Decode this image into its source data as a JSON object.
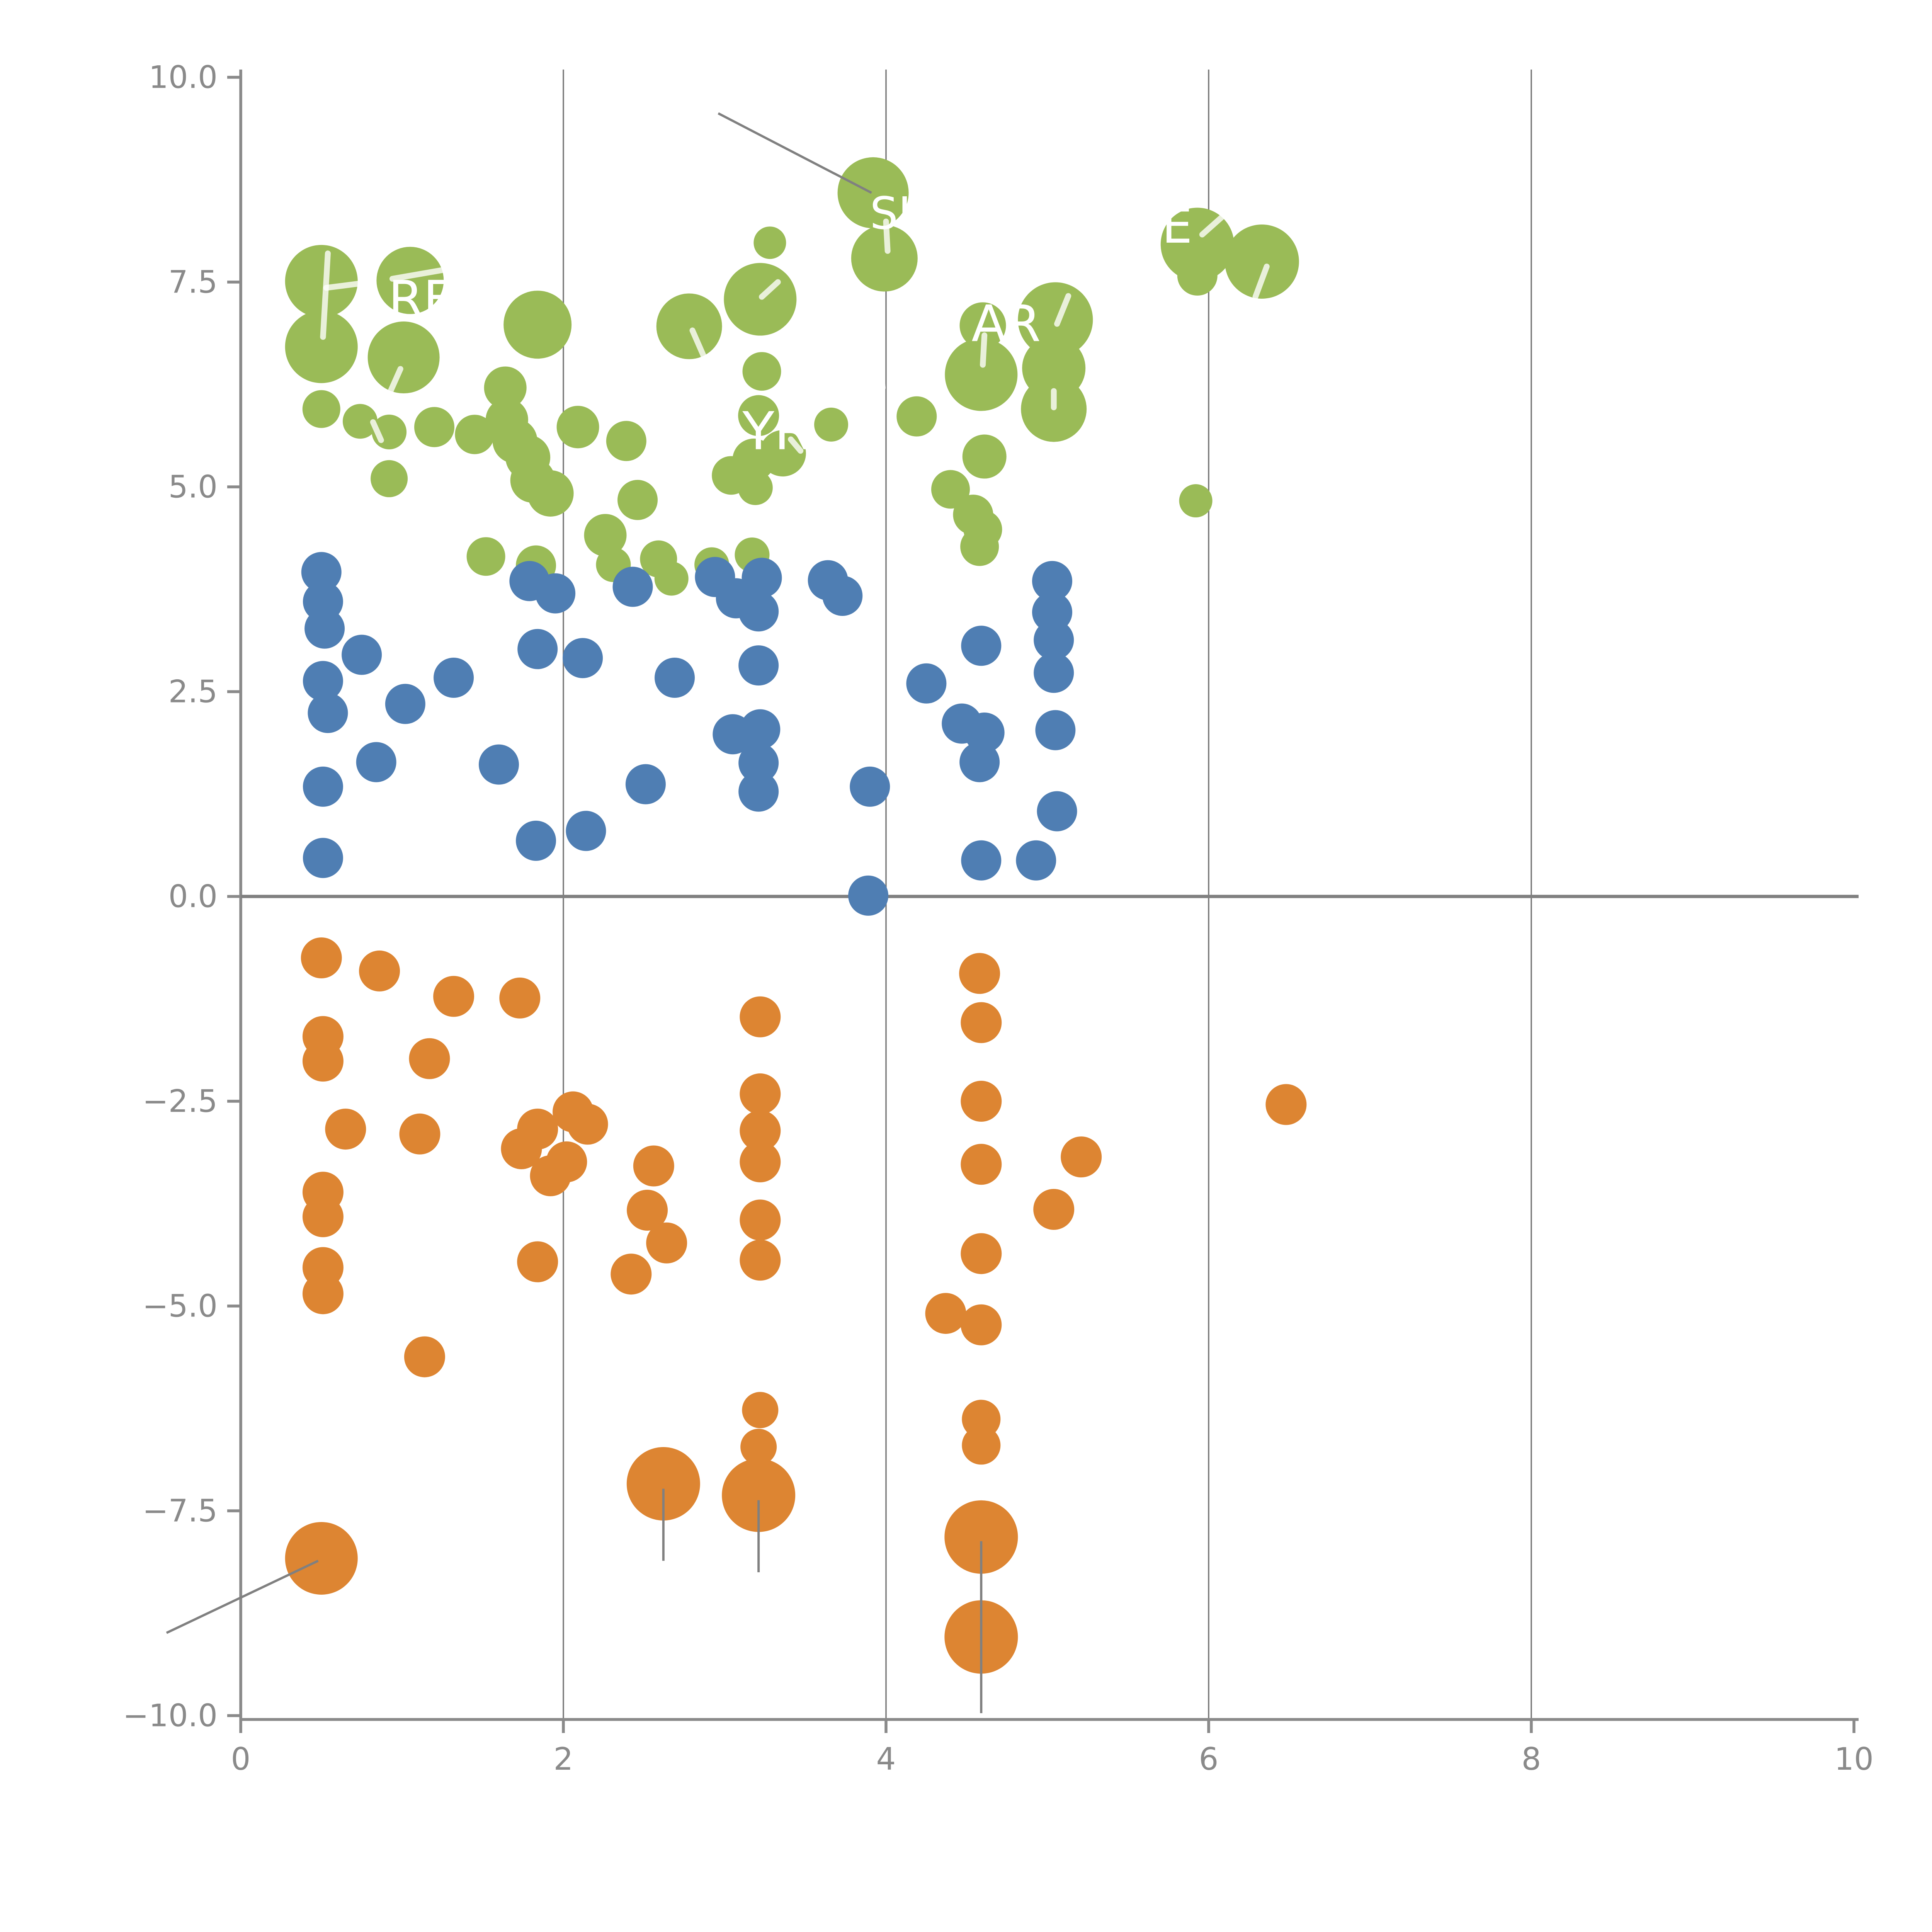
{
  "chart_data": {
    "type": "scatter",
    "title": "",
    "xlabel": "",
    "ylabel": "",
    "xlim": [
      0,
      10
    ],
    "ylim": [
      -10,
      10
    ],
    "grid": "vertical-only",
    "legend": "none",
    "x_ticks": [
      {
        "v": 0,
        "label": "0"
      },
      {
        "v": 2,
        "label": "2"
      },
      {
        "v": 4,
        "label": "4"
      },
      {
        "v": 6,
        "label": "6"
      },
      {
        "v": 8,
        "label": "8"
      },
      {
        "v": 10,
        "label": "10"
      }
    ],
    "y_ticks": [
      {
        "v": 10,
        "label": "10.0"
      },
      {
        "v": 7.5,
        "label": "7.5"
      },
      {
        "v": 5,
        "label": "5.0"
      },
      {
        "v": 2.5,
        "label": "2.5"
      },
      {
        "v": 0,
        "label": "0.0"
      },
      {
        "v": -2.5,
        "label": "−2.5"
      },
      {
        "v": -5,
        "label": "−5.0"
      },
      {
        "v": -7.5,
        "label": "−7.5"
      },
      {
        "v": -10,
        "label": "−10.0"
      }
    ],
    "gridlines_x": [
      2,
      4,
      6,
      8
    ],
    "zero_line_y": 0,
    "colors": {
      "green": "#9ABB57",
      "blue": "#4F7EB3",
      "orange": "#DD8532",
      "axis": "#8a8a8a",
      "zero_line": "#808080",
      "grid": "#777777",
      "annotation": "#808080",
      "leader": "rgba(255,255,255,0.78)"
    },
    "series": [
      {
        "name": "green",
        "color": "#9ABB57",
        "default_radius": 10.4,
        "points": [
          [
            0.5,
            7.51,
            18.8
          ],
          [
            0.5,
            6.71,
            18.8
          ],
          [
            1.05,
            7.52,
            17.4
          ],
          [
            1.01,
            6.58,
            18.6
          ],
          [
            1.84,
            6.98,
            17.6
          ],
          [
            2.78,
            6.96,
            17.0
          ],
          [
            3.22,
            7.29,
            18.8
          ],
          [
            3.28,
            7.98,
            8.4
          ],
          [
            3.92,
            8.59,
            18.4
          ],
          [
            3.99,
            7.79,
            17.2
          ],
          [
            5.93,
            7.96,
            19.0
          ],
          [
            5.93,
            7.58,
            10.4
          ],
          [
            6.33,
            7.75,
            19.2
          ],
          [
            4.6,
            6.97,
            12.0
          ],
          [
            4.59,
            6.37,
            18.8
          ],
          [
            5.05,
            7.04,
            19.4
          ],
          [
            5.04,
            6.45,
            16.4
          ],
          [
            5.04,
            5.95,
            17.0
          ],
          [
            3.23,
            6.41,
            10.0
          ],
          [
            0.5,
            5.95,
            9.8
          ],
          [
            0.74,
            5.8,
            9.0
          ],
          [
            0.92,
            5.67,
            9.0
          ],
          [
            1.2,
            5.73,
            10.4
          ],
          [
            1.45,
            5.64,
            10.2
          ],
          [
            1.64,
            6.21,
            11.0
          ],
          [
            1.65,
            5.82,
            11.0
          ],
          [
            1.7,
            5.56,
            11.6
          ],
          [
            1.78,
            5.36,
            11.6
          ],
          [
            1.81,
            5.08,
            11.6
          ],
          [
            1.92,
            4.92,
            12.0
          ],
          [
            2.09,
            5.73,
            11.0
          ],
          [
            2.39,
            5.56,
            10.4
          ],
          [
            2.46,
            4.84,
            10.4
          ],
          [
            2.26,
            4.41,
            11.0
          ],
          [
            3.21,
            5.87,
            10.6
          ],
          [
            3.66,
            5.76,
            8.8
          ],
          [
            3.18,
            5.33,
            11.0
          ],
          [
            3.04,
            5.14,
            10.0
          ],
          [
            3.36,
            5.41,
            12.0
          ],
          [
            3.19,
            4.99,
            9.0
          ],
          [
            4.19,
            5.86,
            10.4
          ],
          [
            4.61,
            5.37,
            11.4
          ],
          [
            0.92,
            5.1,
            9.6
          ],
          [
            1.52,
            4.15,
            10.0
          ],
          [
            1.83,
            4.04,
            10.4
          ],
          [
            2.59,
            4.12,
            9.6
          ],
          [
            2.67,
            3.88,
            8.8
          ],
          [
            2.31,
            4.05,
            9.0
          ],
          [
            2.92,
            4.05,
            9.0
          ],
          [
            3.17,
            4.17,
            9.0
          ],
          [
            4.4,
            4.97,
            10.0
          ],
          [
            4.54,
            4.66,
            10.4
          ],
          [
            4.6,
            4.48,
            10.0
          ],
          [
            4.58,
            4.27,
            10.0
          ],
          [
            5.92,
            4.83,
            8.6
          ]
        ]
      },
      {
        "name": "blue",
        "color": "#4F7EB3",
        "default_radius": 10.4,
        "points": [
          [
            0.5,
            3.96
          ],
          [
            0.51,
            3.6
          ],
          [
            0.52,
            3.27
          ],
          [
            0.75,
            2.95
          ],
          [
            0.51,
            2.63
          ],
          [
            0.54,
            2.24
          ],
          [
            0.51,
            1.34
          ],
          [
            0.51,
            0.47
          ],
          [
            0.84,
            1.64
          ],
          [
            1.02,
            2.35
          ],
          [
            1.32,
            2.67
          ],
          [
            1.84,
            3.02
          ],
          [
            2.12,
            2.91
          ],
          [
            1.6,
            1.61
          ],
          [
            2.14,
            0.8
          ],
          [
            1.83,
            0.68
          ],
          [
            2.51,
            1.37
          ],
          [
            2.69,
            2.67
          ],
          [
            2.43,
            3.78
          ],
          [
            1.79,
            3.85
          ],
          [
            1.95,
            3.7
          ],
          [
            3.89,
            0.01
          ],
          [
            2.94,
            3.9
          ],
          [
            3.07,
            3.64
          ],
          [
            3.23,
            3.89
          ],
          [
            3.21,
            3.48
          ],
          [
            3.21,
            2.82
          ],
          [
            3.22,
            2.04
          ],
          [
            3.21,
            1.63
          ],
          [
            3.21,
            1.28
          ],
          [
            3.05,
            1.98
          ],
          [
            3.64,
            3.86
          ],
          [
            3.73,
            3.67
          ],
          [
            5.03,
            3.85
          ],
          [
            5.03,
            3.47
          ],
          [
            5.04,
            3.13
          ],
          [
            5.04,
            2.73
          ],
          [
            5.05,
            2.03
          ],
          [
            5.06,
            1.04
          ],
          [
            4.93,
            0.44
          ],
          [
            4.59,
            0.44
          ],
          [
            4.59,
            3.06
          ],
          [
            4.25,
            2.6
          ],
          [
            4.47,
            2.11
          ],
          [
            4.61,
            2.0
          ],
          [
            4.58,
            1.64
          ],
          [
            3.9,
            1.34
          ]
        ]
      },
      {
        "name": "orange",
        "color": "#DD8532",
        "default_radius": 10.6,
        "points": [
          [
            0.5,
            -0.75
          ],
          [
            0.86,
            -0.91
          ],
          [
            1.32,
            -1.22
          ],
          [
            1.73,
            -1.24
          ],
          [
            0.51,
            -1.71
          ],
          [
            0.51,
            -2.01
          ],
          [
            1.17,
            -1.98
          ],
          [
            0.65,
            -2.84
          ],
          [
            1.11,
            -2.9
          ],
          [
            1.84,
            -2.84
          ],
          [
            1.74,
            -3.08
          ],
          [
            2.06,
            -2.63
          ],
          [
            2.15,
            -2.78
          ],
          [
            1.92,
            -3.41
          ],
          [
            2.02,
            -3.24
          ],
          [
            0.51,
            -3.61
          ],
          [
            0.51,
            -3.91
          ],
          [
            2.56,
            -3.29
          ],
          [
            2.52,
            -3.83
          ],
          [
            2.64,
            -4.23
          ],
          [
            2.42,
            -4.61
          ],
          [
            1.84,
            -4.46
          ],
          [
            0.51,
            -4.53
          ],
          [
            0.51,
            -4.85
          ],
          [
            1.14,
            -5.62
          ],
          [
            3.22,
            -1.47
          ],
          [
            3.22,
            -2.41
          ],
          [
            3.22,
            -2.86
          ],
          [
            3.22,
            -3.24
          ],
          [
            3.22,
            -3.95
          ],
          [
            3.22,
            -4.44
          ],
          [
            4.58,
            -0.94
          ],
          [
            4.59,
            -1.54
          ],
          [
            4.59,
            -2.5
          ],
          [
            4.59,
            -3.27
          ],
          [
            5.21,
            -3.18
          ],
          [
            5.04,
            -3.82
          ],
          [
            4.59,
            -4.36
          ],
          [
            4.37,
            -5.09
          ],
          [
            4.59,
            -5.23
          ],
          [
            6.48,
            -2.54
          ],
          [
            3.22,
            -6.27,
            9.4
          ],
          [
            3.21,
            -6.72,
            9.4
          ],
          [
            3.21,
            -7.31,
            19.0
          ],
          [
            2.62,
            -7.17,
            19.0
          ],
          [
            4.59,
            -6.38,
            10.0
          ],
          [
            4.59,
            -6.7,
            10.0
          ],
          [
            4.59,
            -7.82,
            19.0
          ],
          [
            4.59,
            -9.04,
            19.0
          ],
          [
            0.5,
            -8.08,
            18.8
          ]
        ]
      }
    ],
    "point_labels": [
      {
        "text": "REE",
        "x": 0.915,
        "y": 7.08,
        "size": 26
      },
      {
        "text": "SI",
        "x": 3.9,
        "y": 8.15,
        "size": 23
      },
      {
        "text": "AR",
        "x": 4.53,
        "y": 6.78,
        "size": 26
      },
      {
        "text": "E",
        "x": 5.71,
        "y": 7.98,
        "size": 25
      },
      {
        "text": "YR",
        "x": 3.11,
        "y": 5.46,
        "size": 27
      }
    ],
    "annotation_lines_gray": [
      [
        2.96,
        9.56,
        3.91,
        8.59
      ],
      [
        -0.46,
        -8.99,
        0.48,
        -8.11
      ],
      [
        2.62,
        -7.23,
        2.62,
        -8.11
      ],
      [
        3.21,
        -7.37,
        3.21,
        -8.25
      ],
      [
        4.59,
        -7.87,
        4.59,
        -9.97
      ]
    ],
    "leader_lines_white": [
      [
        0.54,
        7.85,
        0.51,
        6.83
      ],
      [
        0.53,
        7.43,
        0.73,
        7.48
      ],
      [
        0.94,
        7.54,
        1.26,
        7.65
      ],
      [
        0.99,
        6.44,
        0.92,
        6.13
      ],
      [
        2.8,
        6.91,
        2.88,
        6.55
      ],
      [
        3.23,
        7.32,
        3.33,
        7.5
      ],
      [
        4.0,
        8.24,
        4.01,
        7.88
      ],
      [
        5.13,
        7.33,
        5.06,
        6.99
      ],
      [
        4.61,
        6.85,
        4.6,
        6.49
      ],
      [
        5.04,
        6.17,
        5.04,
        5.97
      ],
      [
        6.08,
        8.29,
        5.96,
        8.08
      ],
      [
        6.36,
        7.69,
        6.29,
        7.32
      ],
      [
        3.96,
        6.57,
        3.98,
        6.21
      ],
      [
        0.82,
        5.79,
        0.87,
        5.57
      ],
      [
        3.41,
        5.58,
        3.47,
        5.44
      ]
    ]
  }
}
